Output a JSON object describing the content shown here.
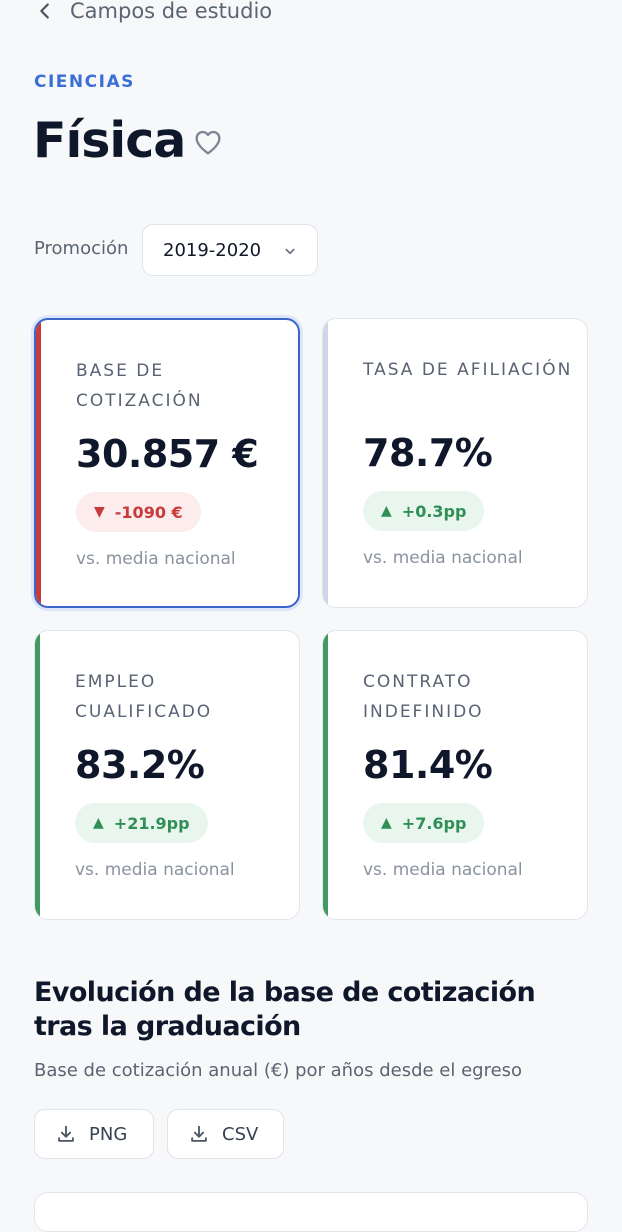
{
  "header": {
    "back_label": "Campos de estudio",
    "category": "CIENCIAS",
    "title": "Física"
  },
  "filter": {
    "label": "Promoción",
    "selected": "2019-2020"
  },
  "colors": {
    "accent": "#3b6fd6",
    "negative": "#c93a3a",
    "positive": "#2f8f57",
    "neutral_bar": "#cdd8e6"
  },
  "kpis": [
    {
      "label": "BASE DE COTIZACIÓN",
      "value": "30.857 €",
      "delta": "-1090 €",
      "direction": "down",
      "comparison": "vs. media nacional",
      "bar_color": "#c93a3a",
      "selected": true
    },
    {
      "label": "TASA DE AFILIACIÓN",
      "value": "78.7%",
      "delta": "+0.3pp",
      "direction": "up",
      "comparison": "vs. media nacional",
      "bar_color": "#cdd8e6",
      "selected": false
    },
    {
      "label": "EMPLEO CUALIFICADO",
      "value": "83.2%",
      "delta": "+21.9pp",
      "direction": "up",
      "comparison": "vs. media nacional",
      "bar_color": "#3f9a64",
      "selected": false
    },
    {
      "label": "CONTRATO INDEFINIDO",
      "value": "81.4%",
      "delta": "+7.6pp",
      "direction": "up",
      "comparison": "vs. media nacional",
      "bar_color": "#3f9a64",
      "selected": false
    }
  ],
  "section": {
    "title": "Evolución de la base de cotización tras la graduación",
    "subtitle": "Base de cotización anual (€) por años desde el egreso",
    "export_png": "PNG",
    "export_csv": "CSV"
  },
  "glyphs": {
    "down": "▼",
    "up": "▲"
  }
}
